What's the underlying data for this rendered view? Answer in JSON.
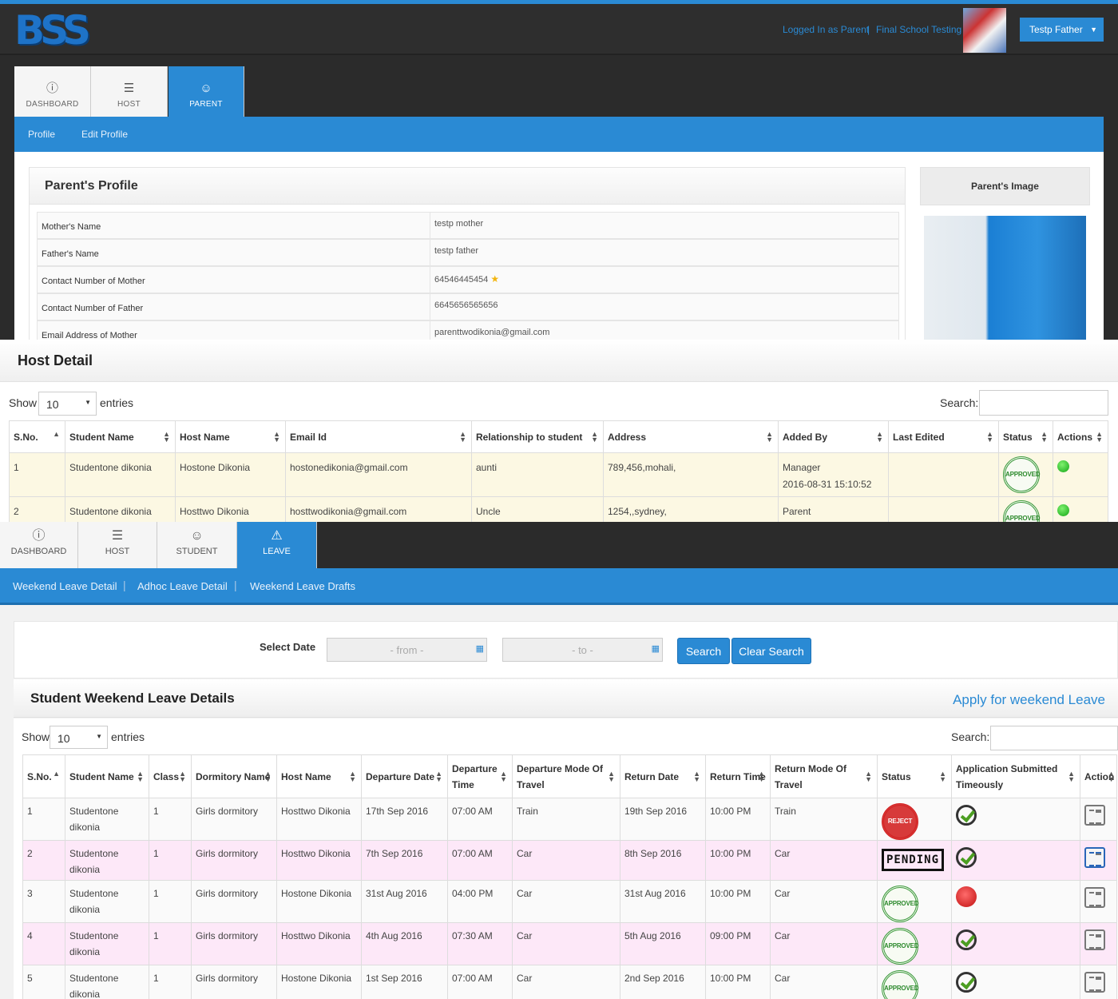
{
  "panel1": {
    "logo": "BSS",
    "top_links": {
      "logged_in": "Logged In as Parent",
      "separator": "|",
      "school": "Final School Testing"
    },
    "user_button": "Testp Father",
    "tabs": [
      {
        "label": "DASHBOARD",
        "icon": "info-icon"
      },
      {
        "label": "HOST",
        "icon": "menu-icon"
      },
      {
        "label": "PARENT",
        "icon": "smiley-icon"
      }
    ],
    "subnav": [
      "Profile",
      "Edit Profile"
    ],
    "profile_title": "Parent's Profile",
    "image_title": "Parent's Image",
    "rows": [
      {
        "label": "Mother's Name",
        "value": "testp mother"
      },
      {
        "label": "Father's Name",
        "value": "testp father"
      },
      {
        "label": "Contact Number of Mother",
        "value": "64546445454"
      },
      {
        "label": "Contact Number of Father",
        "value": "6645656565656"
      },
      {
        "label": "Email Address of Mother",
        "value": "parenttwodikonia@gmail.com"
      }
    ]
  },
  "panel2": {
    "title": "Host Detail",
    "show": "Show",
    "entries": "entries",
    "page_size": "10",
    "search_label": "Search:",
    "columns": [
      "S.No.",
      "Student Name",
      "Host Name",
      "Email Id",
      "Relationship to student",
      "Address",
      "Added By",
      "Last Edited",
      "Status",
      "Actions"
    ],
    "rows": [
      {
        "sno": "1",
        "student": "Studentone dikonia",
        "host": "Hostone Dikonia",
        "email": "hostonedikonia@gmail.com",
        "relation": "aunti",
        "address": "789,456,mohali,",
        "added_by": "Manager",
        "added_on": "2016-08-31 15:10:52",
        "last_edited": "",
        "status": "APPROVED"
      },
      {
        "sno": "2",
        "student": "Studentone dikonia",
        "host": "Hosttwo Dikonia",
        "email": "hosttwodikonia@gmail.com",
        "relation": "Uncle",
        "address": "1254,,sydney,",
        "added_by": "Parent",
        "added_on": "",
        "last_edited": "",
        "status": "APPROVED"
      }
    ]
  },
  "panel3": {
    "tabs": [
      {
        "label": "DASHBOARD",
        "icon": "info-icon"
      },
      {
        "label": "HOST",
        "icon": "menu-icon"
      },
      {
        "label": "STUDENT",
        "icon": "smiley-icon"
      },
      {
        "label": "LEAVE",
        "icon": "warning-icon"
      }
    ],
    "subnav": [
      "Weekend Leave Detail",
      "Adhoc Leave Detail",
      "Weekend Leave Drafts"
    ],
    "select_date": "Select Date",
    "from_placeholder": "- from -",
    "to_placeholder": "- to -",
    "search_btn": "Search",
    "clear_btn": "Clear Search",
    "title": "Student Weekend Leave Details",
    "apply_link": "Apply for weekend Leave",
    "show": "Show",
    "entries": "entries",
    "page_size": "10",
    "search_label": "Search:",
    "columns": [
      "S.No.",
      "Student Name",
      "Class",
      "Dormitory Name",
      "Host Name",
      "Departure Date",
      "Departure Time",
      "Departure Mode Of Travel",
      "Return Date",
      "Return Time",
      "Return Mode Of Travel",
      "Status",
      "Application Submitted Timeously",
      "Action"
    ],
    "rows": [
      {
        "sno": "1",
        "student": "Studentone dikonia",
        "class": "1",
        "dorm": "Girls dormitory",
        "host": "Hosttwo Dikonia",
        "dep_date": "17th Sep 2016",
        "dep_time": "07:00 AM",
        "dep_mode": "Train",
        "ret_date": "19th Sep 2016",
        "ret_time": "10:00 PM",
        "ret_mode": "Train",
        "status": "REJECT",
        "timely": "yes"
      },
      {
        "sno": "2",
        "student": "Studentone dikonia",
        "class": "1",
        "dorm": "Girls dormitory",
        "host": "Hosttwo Dikonia",
        "dep_date": "7th Sep 2016",
        "dep_time": "07:00 AM",
        "dep_mode": "Car",
        "ret_date": "8th Sep 2016",
        "ret_time": "10:00 PM",
        "ret_mode": "Car",
        "status": "PENDING",
        "timely": "yes"
      },
      {
        "sno": "3",
        "student": "Studentone dikonia",
        "class": "1",
        "dorm": "Girls dormitory",
        "host": "Hostone Dikonia",
        "dep_date": "31st Aug 2016",
        "dep_time": "04:00 PM",
        "dep_mode": "Car",
        "ret_date": "31st Aug 2016",
        "ret_time": "10:00 PM",
        "ret_mode": "Car",
        "status": "APPROVED",
        "timely": "no"
      },
      {
        "sno": "4",
        "student": "Studentone dikonia",
        "class": "1",
        "dorm": "Girls dormitory",
        "host": "Hosttwo Dikonia",
        "dep_date": "4th Aug 2016",
        "dep_time": "07:30 AM",
        "dep_mode": "Car",
        "ret_date": "5th Aug 2016",
        "ret_time": "09:00 PM",
        "ret_mode": "Car",
        "status": "APPROVED",
        "timely": "yes"
      },
      {
        "sno": "5",
        "student": "Studentone dikonia",
        "class": "1",
        "dorm": "Girls dormitory",
        "host": "Hostone Dikonia",
        "dep_date": "1st Sep 2016",
        "dep_time": "07:00 AM",
        "dep_mode": "Car",
        "ret_date": "2nd Sep 2016",
        "ret_time": "10:00 PM",
        "ret_mode": "Car",
        "status": "APPROVED",
        "timely": "yes"
      }
    ]
  }
}
